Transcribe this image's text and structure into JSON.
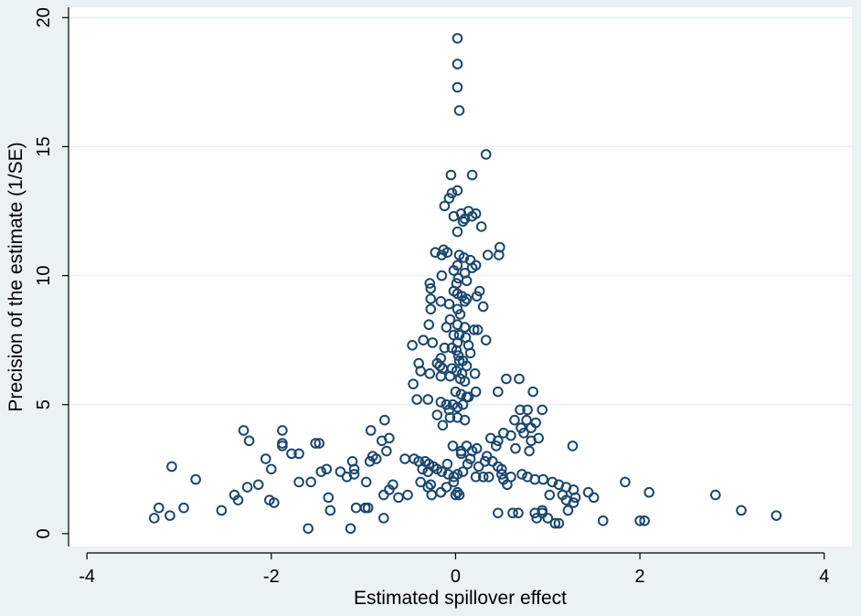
{
  "chart_data": {
    "type": "scatter",
    "xlabel": "Estimated spillover effect",
    "ylabel": "Precision of the estimate (1/SE)",
    "xlim": [
      -4.2,
      4.3
    ],
    "ylim": [
      -0.5,
      20.4
    ],
    "xticks": [
      -4,
      -2,
      0,
      2,
      4
    ],
    "yticks": [
      0,
      5,
      10,
      15,
      20
    ],
    "grid": "horizontal",
    "marker": "hollow-circle",
    "colors": {
      "marker": "#1a476f",
      "plot_background": "#ffffff",
      "outer_background": "#eaf2f3",
      "grid": "#eaf2f3",
      "axis": "#000000"
    },
    "points": [
      [
        0.02,
        19.2
      ],
      [
        0.02,
        18.2
      ],
      [
        0.02,
        17.3
      ],
      [
        0.04,
        16.4
      ],
      [
        0.33,
        14.7
      ],
      [
        -0.05,
        13.9
      ],
      [
        0.18,
        13.9
      ],
      [
        0.02,
        13.3
      ],
      [
        -0.07,
        13.0
      ],
      [
        -0.04,
        13.2
      ],
      [
        -0.12,
        12.7
      ],
      [
        -0.02,
        12.3
      ],
      [
        0.06,
        12.4
      ],
      [
        0.1,
        12.2
      ],
      [
        0.14,
        12.5
      ],
      [
        0.18,
        12.3
      ],
      [
        0.22,
        12.4
      ],
      [
        0.08,
        12.1
      ],
      [
        0.02,
        11.7
      ],
      [
        0.28,
        11.9
      ],
      [
        -0.13,
        11.0
      ],
      [
        -0.09,
        10.9
      ],
      [
        -0.22,
        10.9
      ],
      [
        -0.15,
        10.8
      ],
      [
        0.04,
        10.8
      ],
      [
        0.09,
        10.7
      ],
      [
        0.16,
        10.6
      ],
      [
        0.35,
        10.8
      ],
      [
        0.47,
        10.8
      ],
      [
        0.48,
        11.1
      ],
      [
        0.02,
        10.4
      ],
      [
        0.18,
        10.3
      ],
      [
        0.22,
        10.4
      ],
      [
        -0.02,
        10.2
      ],
      [
        0.1,
        10.1
      ],
      [
        -0.15,
        10.0
      ],
      [
        0.03,
        9.9
      ],
      [
        0.12,
        9.8
      ],
      [
        0.01,
        9.7
      ],
      [
        -0.28,
        9.7
      ],
      [
        -0.27,
        9.5
      ],
      [
        -0.02,
        9.4
      ],
      [
        0.02,
        9.3
      ],
      [
        0.07,
        9.2
      ],
      [
        0.12,
        9.1
      ],
      [
        0.26,
        9.4
      ],
      [
        0.23,
        9.2
      ],
      [
        0.1,
        9.0
      ],
      [
        0.3,
        8.8
      ],
      [
        -0.27,
        9.1
      ],
      [
        -0.16,
        9.0
      ],
      [
        -0.07,
        8.9
      ],
      [
        0.02,
        8.7
      ],
      [
        -0.27,
        8.7
      ],
      [
        0.05,
        8.5
      ],
      [
        -0.06,
        8.3
      ],
      [
        0.02,
        8.1
      ],
      [
        -0.29,
        8.1
      ],
      [
        -0.1,
        8.0
      ],
      [
        0.1,
        8.0
      ],
      [
        0.2,
        7.9
      ],
      [
        0.24,
        7.9
      ],
      [
        0.04,
        7.7
      ],
      [
        -0.02,
        7.7
      ],
      [
        0.11,
        7.6
      ],
      [
        -0.35,
        7.5
      ],
      [
        -0.25,
        7.4
      ],
      [
        0.02,
        7.4
      ],
      [
        0.14,
        7.3
      ],
      [
        0.33,
        7.5
      ],
      [
        -0.47,
        7.3
      ],
      [
        -0.12,
        7.2
      ],
      [
        -0.04,
        7.2
      ],
      [
        0.01,
        7.1
      ],
      [
        0.16,
        7.0
      ],
      [
        0.03,
        6.9
      ],
      [
        -0.16,
        6.8
      ],
      [
        0.04,
        6.7
      ],
      [
        0.08,
        6.7
      ],
      [
        0.12,
        6.5
      ],
      [
        -0.4,
        6.6
      ],
      [
        -0.2,
        6.6
      ],
      [
        -0.17,
        6.5
      ],
      [
        -0.14,
        6.4
      ],
      [
        -0.04,
        6.4
      ],
      [
        0.01,
        6.3
      ],
      [
        0.07,
        6.2
      ],
      [
        0.21,
        6.2
      ],
      [
        -0.38,
        6.3
      ],
      [
        -0.28,
        6.2
      ],
      [
        -0.16,
        6.1
      ],
      [
        -0.06,
        6.1
      ],
      [
        0.05,
        6.0
      ],
      [
        0.1,
        5.9
      ],
      [
        0.55,
        6.0
      ],
      [
        0.69,
        6.0
      ],
      [
        -0.46,
        5.8
      ],
      [
        0.0,
        5.5
      ],
      [
        0.06,
        5.4
      ],
      [
        0.12,
        5.3
      ],
      [
        0.22,
        5.5
      ],
      [
        0.46,
        5.5
      ],
      [
        0.84,
        5.5
      ],
      [
        -0.42,
        5.2
      ],
      [
        -0.3,
        5.2
      ],
      [
        -0.16,
        5.1
      ],
      [
        -0.1,
        5.0
      ],
      [
        -0.03,
        5.0
      ],
      [
        0.02,
        4.9
      ],
      [
        0.08,
        5.0
      ],
      [
        0.14,
        5.3
      ],
      [
        -0.07,
        4.8
      ],
      [
        0.7,
        4.8
      ],
      [
        0.78,
        4.8
      ],
      [
        0.94,
        4.8
      ],
      [
        -0.2,
        4.6
      ],
      [
        -0.06,
        4.5
      ],
      [
        0.02,
        4.5
      ],
      [
        0.1,
        4.4
      ],
      [
        0.64,
        4.4
      ],
      [
        0.77,
        4.4
      ],
      [
        0.87,
        4.3
      ],
      [
        -0.14,
        4.2
      ],
      [
        0.71,
        4.1
      ],
      [
        0.82,
        4.1
      ],
      [
        0.52,
        3.9
      ],
      [
        0.6,
        3.8
      ],
      [
        0.74,
        3.9
      ],
      [
        0.82,
        3.6
      ],
      [
        0.9,
        3.7
      ],
      [
        0.38,
        3.7
      ],
      [
        0.46,
        3.6
      ],
      [
        0.12,
        3.4
      ],
      [
        -0.03,
        3.4
      ],
      [
        0.44,
        3.4
      ],
      [
        0.65,
        3.3
      ],
      [
        0.8,
        3.2
      ],
      [
        1.27,
        3.4
      ],
      [
        0.06,
        3.2
      ],
      [
        0.18,
        3.2
      ],
      [
        0.23,
        3.3
      ],
      [
        0.34,
        3.0
      ],
      [
        0.16,
        2.9
      ],
      [
        0.32,
        2.8
      ],
      [
        0.4,
        2.8
      ],
      [
        0.13,
        2.7
      ],
      [
        0.25,
        2.6
      ],
      [
        0.46,
        2.6
      ],
      [
        0.5,
        2.5
      ],
      [
        -0.45,
        2.9
      ],
      [
        -0.4,
        2.8
      ],
      [
        -0.33,
        2.8
      ],
      [
        -0.29,
        2.7
      ],
      [
        -0.24,
        2.6
      ],
      [
        -0.2,
        2.5
      ],
      [
        -0.36,
        2.5
      ],
      [
        -0.3,
        2.4
      ],
      [
        -0.15,
        2.4
      ],
      [
        -0.08,
        2.3
      ],
      [
        -0.02,
        2.2
      ],
      [
        0.02,
        2.3
      ],
      [
        0.08,
        2.4
      ],
      [
        0.22,
        2.2
      ],
      [
        0.3,
        2.2
      ],
      [
        0.5,
        2.3
      ],
      [
        0.6,
        2.2
      ],
      [
        0.72,
        2.3
      ],
      [
        0.78,
        2.2
      ],
      [
        0.86,
        2.1
      ],
      [
        0.95,
        2.1
      ],
      [
        1.05,
        2.0
      ],
      [
        1.12,
        1.9
      ],
      [
        1.2,
        1.8
      ],
      [
        0.52,
        2.1
      ],
      [
        0.56,
        1.9
      ],
      [
        0.36,
        2.2
      ],
      [
        -0.02,
        2.0
      ],
      [
        -0.1,
        1.8
      ],
      [
        -0.3,
        1.8
      ],
      [
        -0.52,
        1.5
      ],
      [
        -0.62,
        1.4
      ],
      [
        -0.72,
        1.7
      ],
      [
        -0.78,
        1.5
      ],
      [
        -0.68,
        1.9
      ],
      [
        -0.55,
        2.9
      ],
      [
        -0.38,
        2.0
      ],
      [
        -0.27,
        1.9
      ],
      [
        -0.16,
        1.6
      ],
      [
        0.0,
        1.5
      ],
      [
        0.04,
        1.5
      ],
      [
        0.02,
        1.6
      ],
      [
        -0.09,
        2.7
      ],
      [
        0.06,
        3.1
      ],
      [
        -0.26,
        1.5
      ],
      [
        1.02,
        1.5
      ],
      [
        1.16,
        1.5
      ],
      [
        1.2,
        1.3
      ],
      [
        1.28,
        1.2
      ],
      [
        1.3,
        1.4
      ],
      [
        1.44,
        1.6
      ],
      [
        1.5,
        1.4
      ],
      [
        1.28,
        1.7
      ],
      [
        0.88,
        0.6
      ],
      [
        0.86,
        0.8
      ],
      [
        0.94,
        0.9
      ],
      [
        1.0,
        0.6
      ],
      [
        1.08,
        0.4
      ],
      [
        1.12,
        0.4
      ],
      [
        1.22,
        0.9
      ],
      [
        1.6,
        0.5
      ],
      [
        1.84,
        2.0
      ],
      [
        2.1,
        1.6
      ],
      [
        2.0,
        0.5
      ],
      [
        2.05,
        0.5
      ],
      [
        2.82,
        1.5
      ],
      [
        3.1,
        0.9
      ],
      [
        3.48,
        0.7
      ],
      [
        0.46,
        0.8
      ],
      [
        0.62,
        0.8
      ],
      [
        0.68,
        0.8
      ],
      [
        0.94,
        0.8
      ],
      [
        -0.77,
        4.4
      ],
      [
        -0.72,
        3.7
      ],
      [
        -0.8,
        3.6
      ],
      [
        -0.75,
        3.2
      ],
      [
        -0.9,
        3.0
      ],
      [
        -0.86,
        2.9
      ],
      [
        -0.93,
        2.8
      ],
      [
        -0.92,
        4.0
      ],
      [
        -0.97,
        2.0
      ],
      [
        -1.1,
        2.5
      ],
      [
        -1.12,
        2.8
      ],
      [
        -1.18,
        2.2
      ],
      [
        -1.25,
        2.4
      ],
      [
        -1.4,
        2.5
      ],
      [
        -1.46,
        2.4
      ],
      [
        -1.48,
        3.5
      ],
      [
        -1.52,
        3.5
      ],
      [
        -1.7,
        3.1
      ],
      [
        -1.78,
        3.1
      ],
      [
        -1.88,
        3.5
      ],
      [
        -1.88,
        3.4
      ],
      [
        -1.88,
        4.0
      ],
      [
        -2.06,
        2.9
      ],
      [
        -2.0,
        2.5
      ],
      [
        -2.3,
        4.0
      ],
      [
        -2.24,
        3.6
      ],
      [
        -2.14,
        1.9
      ],
      [
        -2.26,
        1.8
      ],
      [
        -2.4,
        1.5
      ],
      [
        -2.36,
        1.3
      ],
      [
        -2.02,
        1.3
      ],
      [
        -1.97,
        1.2
      ],
      [
        -1.7,
        2.0
      ],
      [
        -1.57,
        2.0
      ],
      [
        -1.38,
        1.4
      ],
      [
        -1.36,
        0.9
      ],
      [
        -1.1,
        2.3
      ],
      [
        -1.08,
        1.0
      ],
      [
        -0.98,
        1.0
      ],
      [
        -0.95,
        1.0
      ],
      [
        -1.14,
        0.2
      ],
      [
        -1.6,
        0.2
      ],
      [
        -0.78,
        0.6
      ],
      [
        -2.54,
        0.9
      ],
      [
        -2.82,
        2.1
      ],
      [
        -2.95,
        1.0
      ],
      [
        -3.08,
        2.6
      ],
      [
        -3.1,
        0.7
      ],
      [
        -3.22,
        1.0
      ],
      [
        -3.27,
        0.6
      ]
    ]
  }
}
